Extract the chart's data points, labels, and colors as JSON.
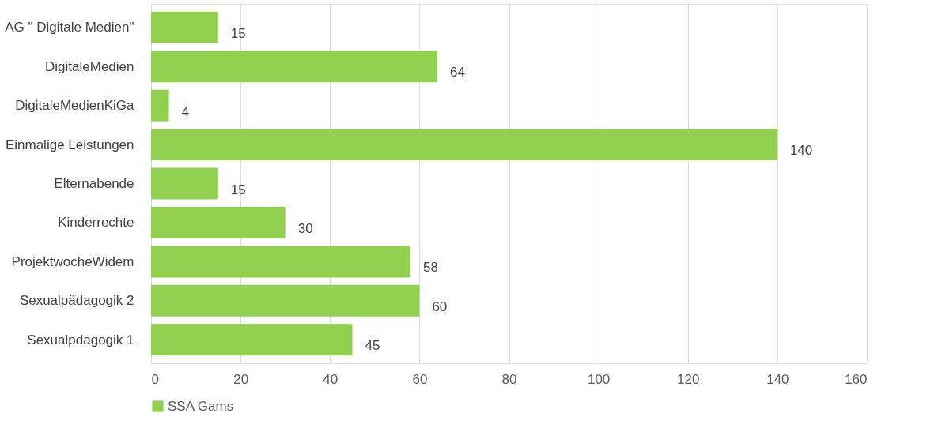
{
  "chart_data": {
    "type": "bar",
    "orientation": "horizontal",
    "categories": [
      "AG \" Digitale Medien\"",
      "DigitaleMedien",
      "DigitaleMedienKiGa",
      "Einmalige Leistungen",
      "Elternabende",
      "Kinderrechte",
      "ProjektwocheWidem",
      "Sexualpädagogik 2",
      "Sexualpdagogik 1"
    ],
    "series": [
      {
        "name": "SSA Gams",
        "color": "#92d050",
        "values": [
          15,
          64,
          4,
          140,
          15,
          30,
          58,
          60,
          45
        ]
      }
    ],
    "xlim": [
      0,
      160
    ],
    "xticks": [
      0,
      20,
      40,
      60,
      80,
      100,
      120,
      140,
      160
    ],
    "grid": "x",
    "data_labels": true,
    "legend": "bottom"
  }
}
